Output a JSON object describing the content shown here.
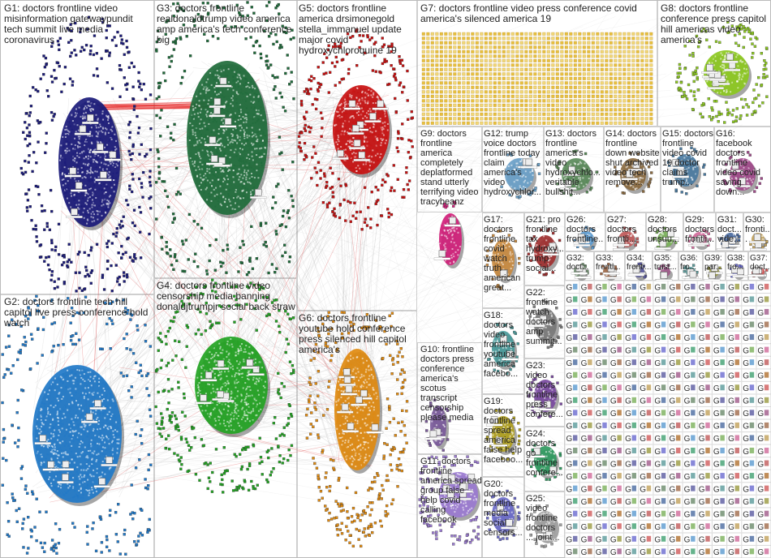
{
  "groups": [
    {
      "id": "G1",
      "label": "G1: doctors frontline video misinformation gatewaypundit tech summit live media coronavirus",
      "color": "#1a1a7a"
    },
    {
      "id": "G2",
      "label": "G2: doctors frontline tech hill capitol live press conference hold watch",
      "color": "#1f78c8"
    },
    {
      "id": "G3",
      "label": "G3: doctors frontline realdonaldtrump video america amp america's tech conference big",
      "color": "#1e6b3a"
    },
    {
      "id": "G4",
      "label": "G4: doctors frontline video censorship media banning donaldjtrumpjr social back straw",
      "color": "#22a322"
    },
    {
      "id": "G5",
      "label": "G5: doctors frontline america drsimonegold stella_immanuel update major covid hydroxychloroquine 19",
      "color": "#c81010"
    },
    {
      "id": "G6",
      "label": "G6: doctors frontline youtube hold conference press silenced hill capitol america's",
      "color": "#e08a10"
    },
    {
      "id": "G7",
      "label": "G7: doctors frontline video press conference covid america's silenced america 19",
      "color": "#e8c040"
    },
    {
      "id": "G8",
      "label": "G8: doctors frontline conference press capitol hill americas video america's",
      "color": "#8cc820"
    },
    {
      "id": "G9",
      "label": "G9: doctors frontline america completely deplatformed stand utterly terrifying video tracybeanz",
      "color": "#d0207a"
    },
    {
      "id": "G10",
      "label": "G10: frontline doctors press conference america's scotus transcript censorship please media",
      "color": "#7a5a9a"
    },
    {
      "id": "G11",
      "label": "G11: doctors frontline america spread group false help covid calling facebook",
      "color": "#9a7ad0"
    },
    {
      "id": "G12",
      "label": "G12: trump voice doctors frontline today claim america's video hydroxychlor...",
      "color": "#6aa0c8"
    },
    {
      "id": "G13",
      "label": "G13: doctors frontline america's video hydroxychlo... veritable bullshit...",
      "color": "#5a8a5a"
    },
    {
      "id": "G14",
      "label": "G14: doctors frontline down website shut archived video tech remove...",
      "color": "#8a6a40"
    },
    {
      "id": "G15",
      "label": "G15: doctors frontline video covid 19 doctor claims trump...",
      "color": "#4a7aa0"
    },
    {
      "id": "G16",
      "label": "G16: facebook doctors frontline video covid saving down...",
      "color": "#a04a8a"
    },
    {
      "id": "G17",
      "label": "G17: doctors frontline covid watch truth american great...",
      "color": "#c88a40"
    },
    {
      "id": "G18",
      "label": "G18: doctors video frontline youtube america facebo...",
      "color": "#4a9a9a"
    },
    {
      "id": "G19",
      "label": "G19: doctors frontline spread america false help faceboo...",
      "color": "#b0a020"
    },
    {
      "id": "G20",
      "label": "G20: doctors frontline media social censors...",
      "color": "#6a6ac8"
    },
    {
      "id": "G21",
      "label": "G21: pro frontline tax hydroxy... trump social...",
      "color": "#a03030"
    },
    {
      "id": "G22",
      "label": "G22: frontline watch doctors amp summit...",
      "color": "#7a7a7a"
    },
    {
      "id": "G23",
      "label": "G23: video doctors frontline press confere...",
      "color": "#7a4aa0"
    },
    {
      "id": "G24",
      "label": "G24: doctors go frontline confere...",
      "color": "#309a60"
    },
    {
      "id": "G25",
      "label": "G25: video frontline doctors ... joint...",
      "color": "#a0a0a0"
    },
    {
      "id": "G26",
      "label": "G26: doctors frontline...",
      "color": "#5a9ad0"
    },
    {
      "id": "G27",
      "label": "G27: doctors frontli...",
      "color": "#c05a5a"
    },
    {
      "id": "G28",
      "label": "G28: doctors unsuu...",
      "color": "#7ab05a"
    },
    {
      "id": "G29",
      "label": "G29: doctors frontli...",
      "color": "#d06a9a"
    },
    {
      "id": "G31",
      "label": "G31: doct... vide...",
      "color": "#4a6aa0"
    },
    {
      "id": "G30",
      "label": "G30: fronti...",
      "color": "#c0a05a"
    },
    {
      "id": "G32",
      "label": "G32: doct...",
      "color": "#6a8a6a"
    },
    {
      "id": "G33",
      "label": "G33: frontl...",
      "color": "#a06a4a"
    },
    {
      "id": "G34",
      "label": "G34: fronti...",
      "color": "#5a5aa0"
    },
    {
      "id": "G35",
      "label": "G35: trust...",
      "color": "#a05a8a"
    },
    {
      "id": "G36",
      "label": "G36: fro...",
      "color": "#5a9a9a"
    },
    {
      "id": "G39",
      "label": "G39: par...",
      "color": "#9a9a40"
    },
    {
      "id": "G38",
      "label": "G38: fro...",
      "color": "#6a6ad0"
    },
    {
      "id": "G37",
      "label": "G37: doct...",
      "color": "#d05a5a"
    }
  ]
}
